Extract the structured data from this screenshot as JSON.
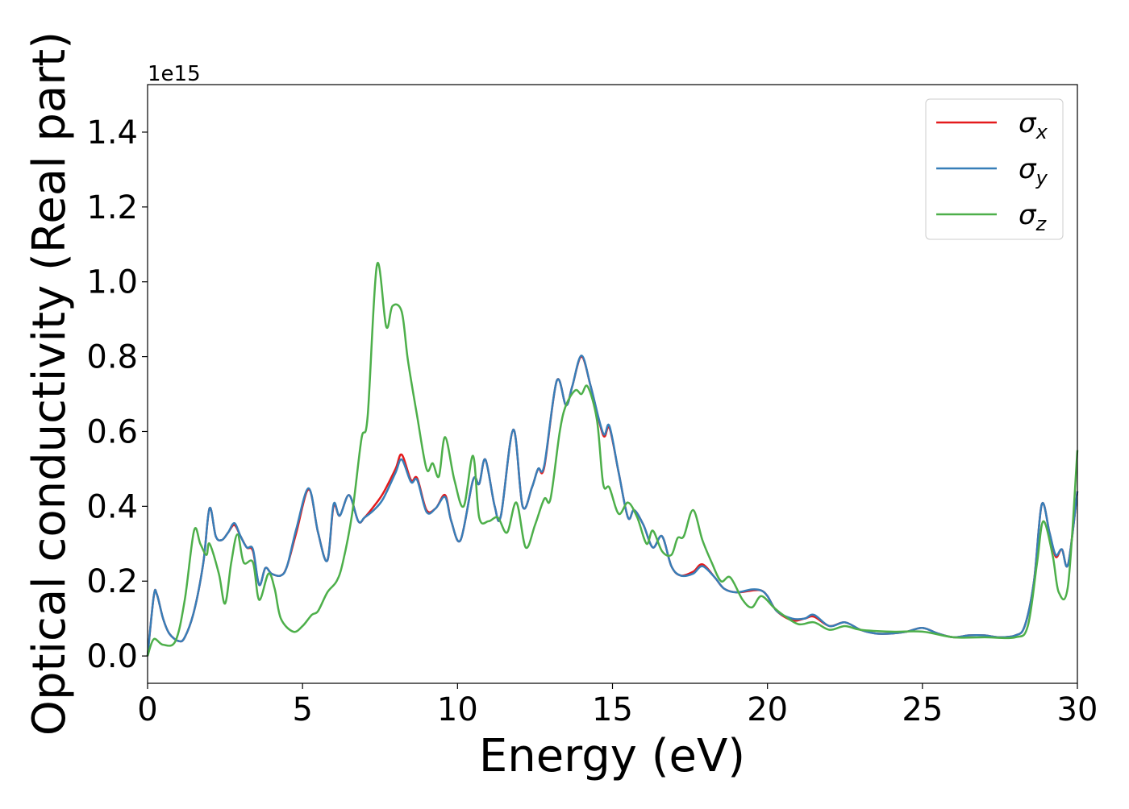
{
  "chart_data": {
    "type": "line",
    "title": "",
    "xlabel": "Energy (eV)",
    "ylabel": "Optical conductivity (Real part)",
    "y_offset_label": "1e15",
    "xlim": [
      0,
      30
    ],
    "ylim": [
      -0.073,
      1.527
    ],
    "xticks": [
      0,
      5,
      10,
      15,
      20,
      25,
      30
    ],
    "xtick_labels": [
      "0",
      "5",
      "10",
      "15",
      "20",
      "25",
      "30"
    ],
    "yticks": [
      0.0,
      0.2,
      0.4,
      0.6,
      0.8,
      1.0,
      1.2,
      1.4
    ],
    "ytick_labels": [
      "0.0",
      "0.2",
      "0.4",
      "0.6",
      "0.8",
      "1.0",
      "1.2",
      "1.4"
    ],
    "grid": false,
    "legend_position": "top-right",
    "series": [
      {
        "name": "σx",
        "sym": "σ",
        "sub": "x",
        "color": "#e41a1c",
        "points": [
          [
            0,
            0.0
          ],
          [
            0.2,
            0.16
          ],
          [
            0.3,
            0.165
          ],
          [
            0.5,
            0.1
          ],
          [
            0.7,
            0.06
          ],
          [
            1.0,
            0.04
          ],
          [
            1.2,
            0.05
          ],
          [
            1.5,
            0.12
          ],
          [
            1.8,
            0.25
          ],
          [
            2.0,
            0.395
          ],
          [
            2.2,
            0.32
          ],
          [
            2.4,
            0.31
          ],
          [
            2.6,
            0.33
          ],
          [
            2.8,
            0.35
          ],
          [
            3.0,
            0.32
          ],
          [
            3.2,
            0.29
          ],
          [
            3.4,
            0.28
          ],
          [
            3.6,
            0.19
          ],
          [
            3.8,
            0.235
          ],
          [
            4.0,
            0.22
          ],
          [
            4.3,
            0.215
          ],
          [
            4.5,
            0.24
          ],
          [
            4.8,
            0.33
          ],
          [
            5.2,
            0.445
          ],
          [
            5.5,
            0.33
          ],
          [
            5.8,
            0.255
          ],
          [
            6.0,
            0.4
          ],
          [
            6.2,
            0.375
          ],
          [
            6.5,
            0.43
          ],
          [
            6.8,
            0.36
          ],
          [
            7.0,
            0.37
          ],
          [
            7.3,
            0.4
          ],
          [
            7.6,
            0.435
          ],
          [
            8.0,
            0.5
          ],
          [
            8.2,
            0.538
          ],
          [
            8.5,
            0.47
          ],
          [
            8.7,
            0.475
          ],
          [
            9.0,
            0.39
          ],
          [
            9.3,
            0.395
          ],
          [
            9.6,
            0.43
          ],
          [
            9.8,
            0.36
          ],
          [
            10.1,
            0.31
          ],
          [
            10.5,
            0.47
          ],
          [
            10.7,
            0.46
          ],
          [
            10.9,
            0.525
          ],
          [
            11.2,
            0.4
          ],
          [
            11.4,
            0.375
          ],
          [
            11.8,
            0.605
          ],
          [
            12.1,
            0.4
          ],
          [
            12.4,
            0.45
          ],
          [
            12.6,
            0.5
          ],
          [
            12.8,
            0.505
          ],
          [
            13.2,
            0.735
          ],
          [
            13.5,
            0.67
          ],
          [
            13.7,
            0.72
          ],
          [
            14.0,
            0.8
          ],
          [
            14.3,
            0.72
          ],
          [
            14.7,
            0.59
          ],
          [
            14.9,
            0.61
          ],
          [
            15.2,
            0.49
          ],
          [
            15.5,
            0.37
          ],
          [
            15.7,
            0.39
          ],
          [
            16.0,
            0.35
          ],
          [
            16.3,
            0.29
          ],
          [
            16.6,
            0.32
          ],
          [
            16.9,
            0.24
          ],
          [
            17.2,
            0.215
          ],
          [
            17.6,
            0.225
          ],
          [
            17.9,
            0.245
          ],
          [
            18.3,
            0.21
          ],
          [
            18.6,
            0.18
          ],
          [
            19.0,
            0.17
          ],
          [
            19.5,
            0.175
          ],
          [
            19.8,
            0.175
          ],
          [
            20.0,
            0.16
          ],
          [
            20.3,
            0.12
          ],
          [
            20.8,
            0.095
          ],
          [
            21.2,
            0.1
          ],
          [
            21.5,
            0.105
          ],
          [
            22.0,
            0.08
          ],
          [
            22.5,
            0.09
          ],
          [
            23.0,
            0.07
          ],
          [
            23.5,
            0.06
          ],
          [
            24.0,
            0.06
          ],
          [
            24.5,
            0.065
          ],
          [
            25.0,
            0.075
          ],
          [
            25.5,
            0.06
          ],
          [
            26.0,
            0.05
          ],
          [
            26.5,
            0.055
          ],
          [
            27.0,
            0.055
          ],
          [
            27.5,
            0.05
          ],
          [
            28.0,
            0.055
          ],
          [
            28.3,
            0.08
          ],
          [
            28.6,
            0.2
          ],
          [
            28.85,
            0.405
          ],
          [
            29.1,
            0.33
          ],
          [
            29.3,
            0.265
          ],
          [
            29.5,
            0.285
          ],
          [
            29.7,
            0.245
          ],
          [
            30.0,
            0.44
          ]
        ]
      },
      {
        "name": "σy",
        "sym": "σ",
        "sub": "y",
        "color": "#377eb8",
        "points": [
          [
            0,
            0.0
          ],
          [
            0.2,
            0.16
          ],
          [
            0.3,
            0.165
          ],
          [
            0.5,
            0.1
          ],
          [
            0.7,
            0.06
          ],
          [
            1.0,
            0.04
          ],
          [
            1.2,
            0.05
          ],
          [
            1.5,
            0.12
          ],
          [
            1.8,
            0.25
          ],
          [
            2.0,
            0.395
          ],
          [
            2.2,
            0.32
          ],
          [
            2.4,
            0.31
          ],
          [
            2.6,
            0.33
          ],
          [
            2.8,
            0.355
          ],
          [
            3.0,
            0.32
          ],
          [
            3.2,
            0.29
          ],
          [
            3.4,
            0.285
          ],
          [
            3.6,
            0.19
          ],
          [
            3.8,
            0.235
          ],
          [
            4.0,
            0.22
          ],
          [
            4.3,
            0.215
          ],
          [
            4.5,
            0.24
          ],
          [
            4.8,
            0.34
          ],
          [
            5.2,
            0.448
          ],
          [
            5.5,
            0.33
          ],
          [
            5.8,
            0.255
          ],
          [
            6.0,
            0.405
          ],
          [
            6.2,
            0.375
          ],
          [
            6.5,
            0.43
          ],
          [
            6.8,
            0.36
          ],
          [
            7.0,
            0.37
          ],
          [
            7.3,
            0.39
          ],
          [
            7.6,
            0.42
          ],
          [
            8.0,
            0.49
          ],
          [
            8.2,
            0.525
          ],
          [
            8.5,
            0.465
          ],
          [
            8.7,
            0.47
          ],
          [
            9.0,
            0.385
          ],
          [
            9.3,
            0.395
          ],
          [
            9.6,
            0.425
          ],
          [
            9.8,
            0.36
          ],
          [
            10.1,
            0.31
          ],
          [
            10.5,
            0.47
          ],
          [
            10.7,
            0.46
          ],
          [
            10.9,
            0.525
          ],
          [
            11.2,
            0.4
          ],
          [
            11.4,
            0.375
          ],
          [
            11.8,
            0.605
          ],
          [
            12.1,
            0.4
          ],
          [
            12.4,
            0.45
          ],
          [
            12.6,
            0.5
          ],
          [
            12.8,
            0.51
          ],
          [
            13.2,
            0.735
          ],
          [
            13.5,
            0.67
          ],
          [
            13.7,
            0.72
          ],
          [
            14.0,
            0.803
          ],
          [
            14.3,
            0.72
          ],
          [
            14.7,
            0.595
          ],
          [
            14.9,
            0.615
          ],
          [
            15.2,
            0.49
          ],
          [
            15.5,
            0.37
          ],
          [
            15.7,
            0.39
          ],
          [
            16.0,
            0.35
          ],
          [
            16.3,
            0.29
          ],
          [
            16.6,
            0.32
          ],
          [
            16.9,
            0.24
          ],
          [
            17.2,
            0.215
          ],
          [
            17.6,
            0.22
          ],
          [
            17.9,
            0.24
          ],
          [
            18.3,
            0.21
          ],
          [
            18.6,
            0.18
          ],
          [
            19.0,
            0.17
          ],
          [
            19.5,
            0.178
          ],
          [
            19.8,
            0.175
          ],
          [
            20.0,
            0.16
          ],
          [
            20.3,
            0.12
          ],
          [
            20.8,
            0.1
          ],
          [
            21.2,
            0.1
          ],
          [
            21.5,
            0.11
          ],
          [
            22.0,
            0.08
          ],
          [
            22.5,
            0.09
          ],
          [
            23.0,
            0.07
          ],
          [
            23.5,
            0.06
          ],
          [
            24.0,
            0.06
          ],
          [
            24.5,
            0.065
          ],
          [
            25.0,
            0.075
          ],
          [
            25.5,
            0.06
          ],
          [
            26.0,
            0.05
          ],
          [
            26.5,
            0.055
          ],
          [
            27.0,
            0.055
          ],
          [
            27.5,
            0.05
          ],
          [
            28.0,
            0.055
          ],
          [
            28.3,
            0.08
          ],
          [
            28.6,
            0.2
          ],
          [
            28.85,
            0.405
          ],
          [
            29.1,
            0.33
          ],
          [
            29.3,
            0.27
          ],
          [
            29.5,
            0.285
          ],
          [
            29.7,
            0.245
          ],
          [
            30.0,
            0.44
          ]
        ]
      },
      {
        "name": "σz",
        "sym": "σ",
        "sub": "z",
        "color": "#4daf4a",
        "points": [
          [
            0,
            0.0
          ],
          [
            0.2,
            0.045
          ],
          [
            0.5,
            0.03
          ],
          [
            0.9,
            0.04
          ],
          [
            1.2,
            0.15
          ],
          [
            1.5,
            0.335
          ],
          [
            1.7,
            0.3
          ],
          [
            1.9,
            0.27
          ],
          [
            2.0,
            0.3
          ],
          [
            2.3,
            0.22
          ],
          [
            2.5,
            0.14
          ],
          [
            2.7,
            0.25
          ],
          [
            2.9,
            0.325
          ],
          [
            3.1,
            0.25
          ],
          [
            3.4,
            0.25
          ],
          [
            3.6,
            0.15
          ],
          [
            3.9,
            0.22
          ],
          [
            4.1,
            0.18
          ],
          [
            4.3,
            0.1
          ],
          [
            4.7,
            0.065
          ],
          [
            5.0,
            0.08
          ],
          [
            5.3,
            0.11
          ],
          [
            5.5,
            0.12
          ],
          [
            5.8,
            0.17
          ],
          [
            6.1,
            0.2
          ],
          [
            6.3,
            0.25
          ],
          [
            6.6,
            0.38
          ],
          [
            6.9,
            0.58
          ],
          [
            7.1,
            0.64
          ],
          [
            7.4,
            1.045
          ],
          [
            7.7,
            0.88
          ],
          [
            7.9,
            0.935
          ],
          [
            8.2,
            0.92
          ],
          [
            8.4,
            0.79
          ],
          [
            8.7,
            0.64
          ],
          [
            9.0,
            0.5
          ],
          [
            9.2,
            0.515
          ],
          [
            9.4,
            0.48
          ],
          [
            9.6,
            0.585
          ],
          [
            9.9,
            0.47
          ],
          [
            10.2,
            0.4
          ],
          [
            10.5,
            0.535
          ],
          [
            10.7,
            0.37
          ],
          [
            11.0,
            0.36
          ],
          [
            11.3,
            0.37
          ],
          [
            11.6,
            0.33
          ],
          [
            11.9,
            0.41
          ],
          [
            12.2,
            0.29
          ],
          [
            12.5,
            0.35
          ],
          [
            12.8,
            0.42
          ],
          [
            13.0,
            0.42
          ],
          [
            13.3,
            0.6
          ],
          [
            13.5,
            0.67
          ],
          [
            13.8,
            0.71
          ],
          [
            14.0,
            0.7
          ],
          [
            14.2,
            0.72
          ],
          [
            14.5,
            0.63
          ],
          [
            14.7,
            0.46
          ],
          [
            14.9,
            0.45
          ],
          [
            15.2,
            0.38
          ],
          [
            15.5,
            0.41
          ],
          [
            15.8,
            0.37
          ],
          [
            16.1,
            0.3
          ],
          [
            16.3,
            0.335
          ],
          [
            16.6,
            0.28
          ],
          [
            16.9,
            0.27
          ],
          [
            17.1,
            0.315
          ],
          [
            17.3,
            0.32
          ],
          [
            17.6,
            0.39
          ],
          [
            17.9,
            0.31
          ],
          [
            18.2,
            0.25
          ],
          [
            18.5,
            0.2
          ],
          [
            18.8,
            0.21
          ],
          [
            19.2,
            0.15
          ],
          [
            19.5,
            0.13
          ],
          [
            19.8,
            0.16
          ],
          [
            20.2,
            0.13
          ],
          [
            20.5,
            0.11
          ],
          [
            21.0,
            0.085
          ],
          [
            21.5,
            0.09
          ],
          [
            22.0,
            0.07
          ],
          [
            22.5,
            0.08
          ],
          [
            23.0,
            0.07
          ],
          [
            24.0,
            0.065
          ],
          [
            25.0,
            0.065
          ],
          [
            26.0,
            0.05
          ],
          [
            27.0,
            0.05
          ],
          [
            28.0,
            0.05
          ],
          [
            28.4,
            0.08
          ],
          [
            28.7,
            0.25
          ],
          [
            28.9,
            0.36
          ],
          [
            29.2,
            0.27
          ],
          [
            29.4,
            0.17
          ],
          [
            29.7,
            0.19
          ],
          [
            30.0,
            0.55
          ]
        ]
      }
    ]
  }
}
